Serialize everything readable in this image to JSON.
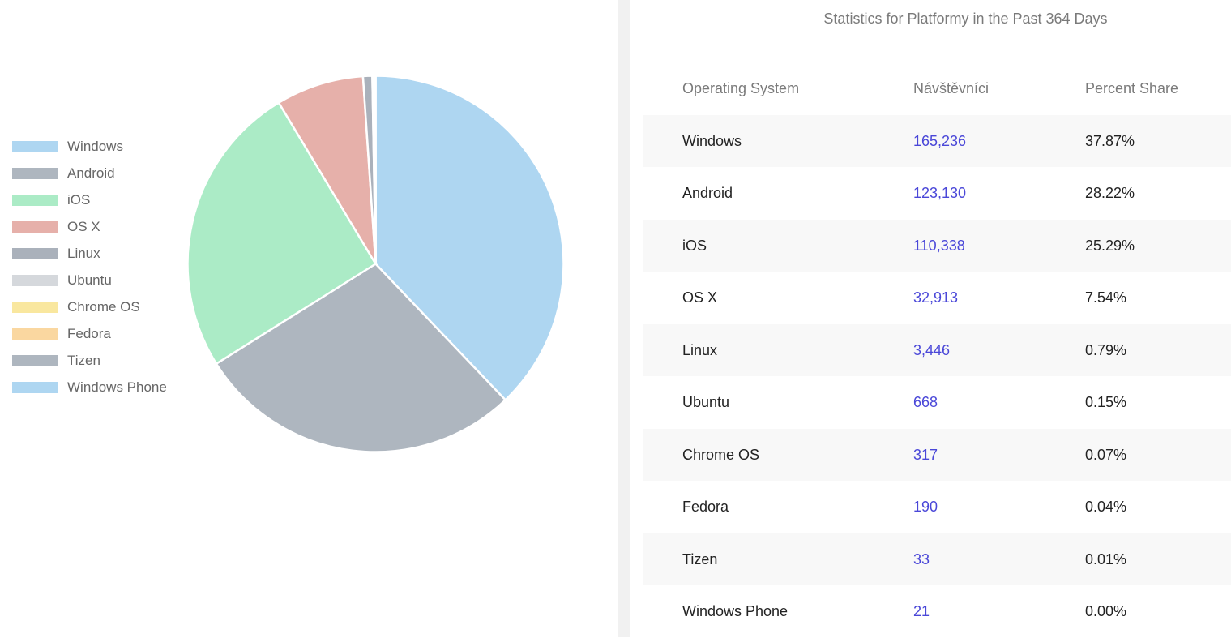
{
  "chart_data": {
    "type": "pie",
    "title": "",
    "categories": [
      "Windows",
      "Android",
      "iOS",
      "OS X",
      "Linux",
      "Ubuntu",
      "Chrome OS",
      "Fedora",
      "Tizen",
      "Windows Phone"
    ],
    "values": [
      165236,
      123130,
      110338,
      32913,
      3446,
      668,
      317,
      190,
      33,
      21
    ],
    "colors": [
      "#aed6f1",
      "#aeb6bf",
      "#abebc6",
      "#e6b0aa",
      "#aab1bb",
      "#d5d8dc",
      "#f9e79f",
      "#fad7a0",
      "#aeb6bf",
      "#aed6f1"
    ],
    "legend_position": "left",
    "slice_border_color": "#ffffff"
  },
  "stats": {
    "title": "Statistics for Platformy in the Past 364 Days",
    "headers": [
      "Operating System",
      "Návštěvníci",
      "Percent Share"
    ],
    "rows": [
      {
        "os": "Windows",
        "visitors": "165,236",
        "share": "37.87%"
      },
      {
        "os": "Android",
        "visitors": "123,130",
        "share": "28.22%"
      },
      {
        "os": "iOS",
        "visitors": "110,338",
        "share": "25.29%"
      },
      {
        "os": "OS X",
        "visitors": "32,913",
        "share": "7.54%"
      },
      {
        "os": "Linux",
        "visitors": "3,446",
        "share": "0.79%"
      },
      {
        "os": "Ubuntu",
        "visitors": "668",
        "share": "0.15%"
      },
      {
        "os": "Chrome OS",
        "visitors": "317",
        "share": "0.07%"
      },
      {
        "os": "Fedora",
        "visitors": "190",
        "share": "0.04%"
      },
      {
        "os": "Tizen",
        "visitors": "33",
        "share": "0.01%"
      },
      {
        "os": "Windows Phone",
        "visitors": "21",
        "share": "0.00%"
      }
    ],
    "link_color": "#4a47d8",
    "stripe_color": "#f8f8f8"
  }
}
